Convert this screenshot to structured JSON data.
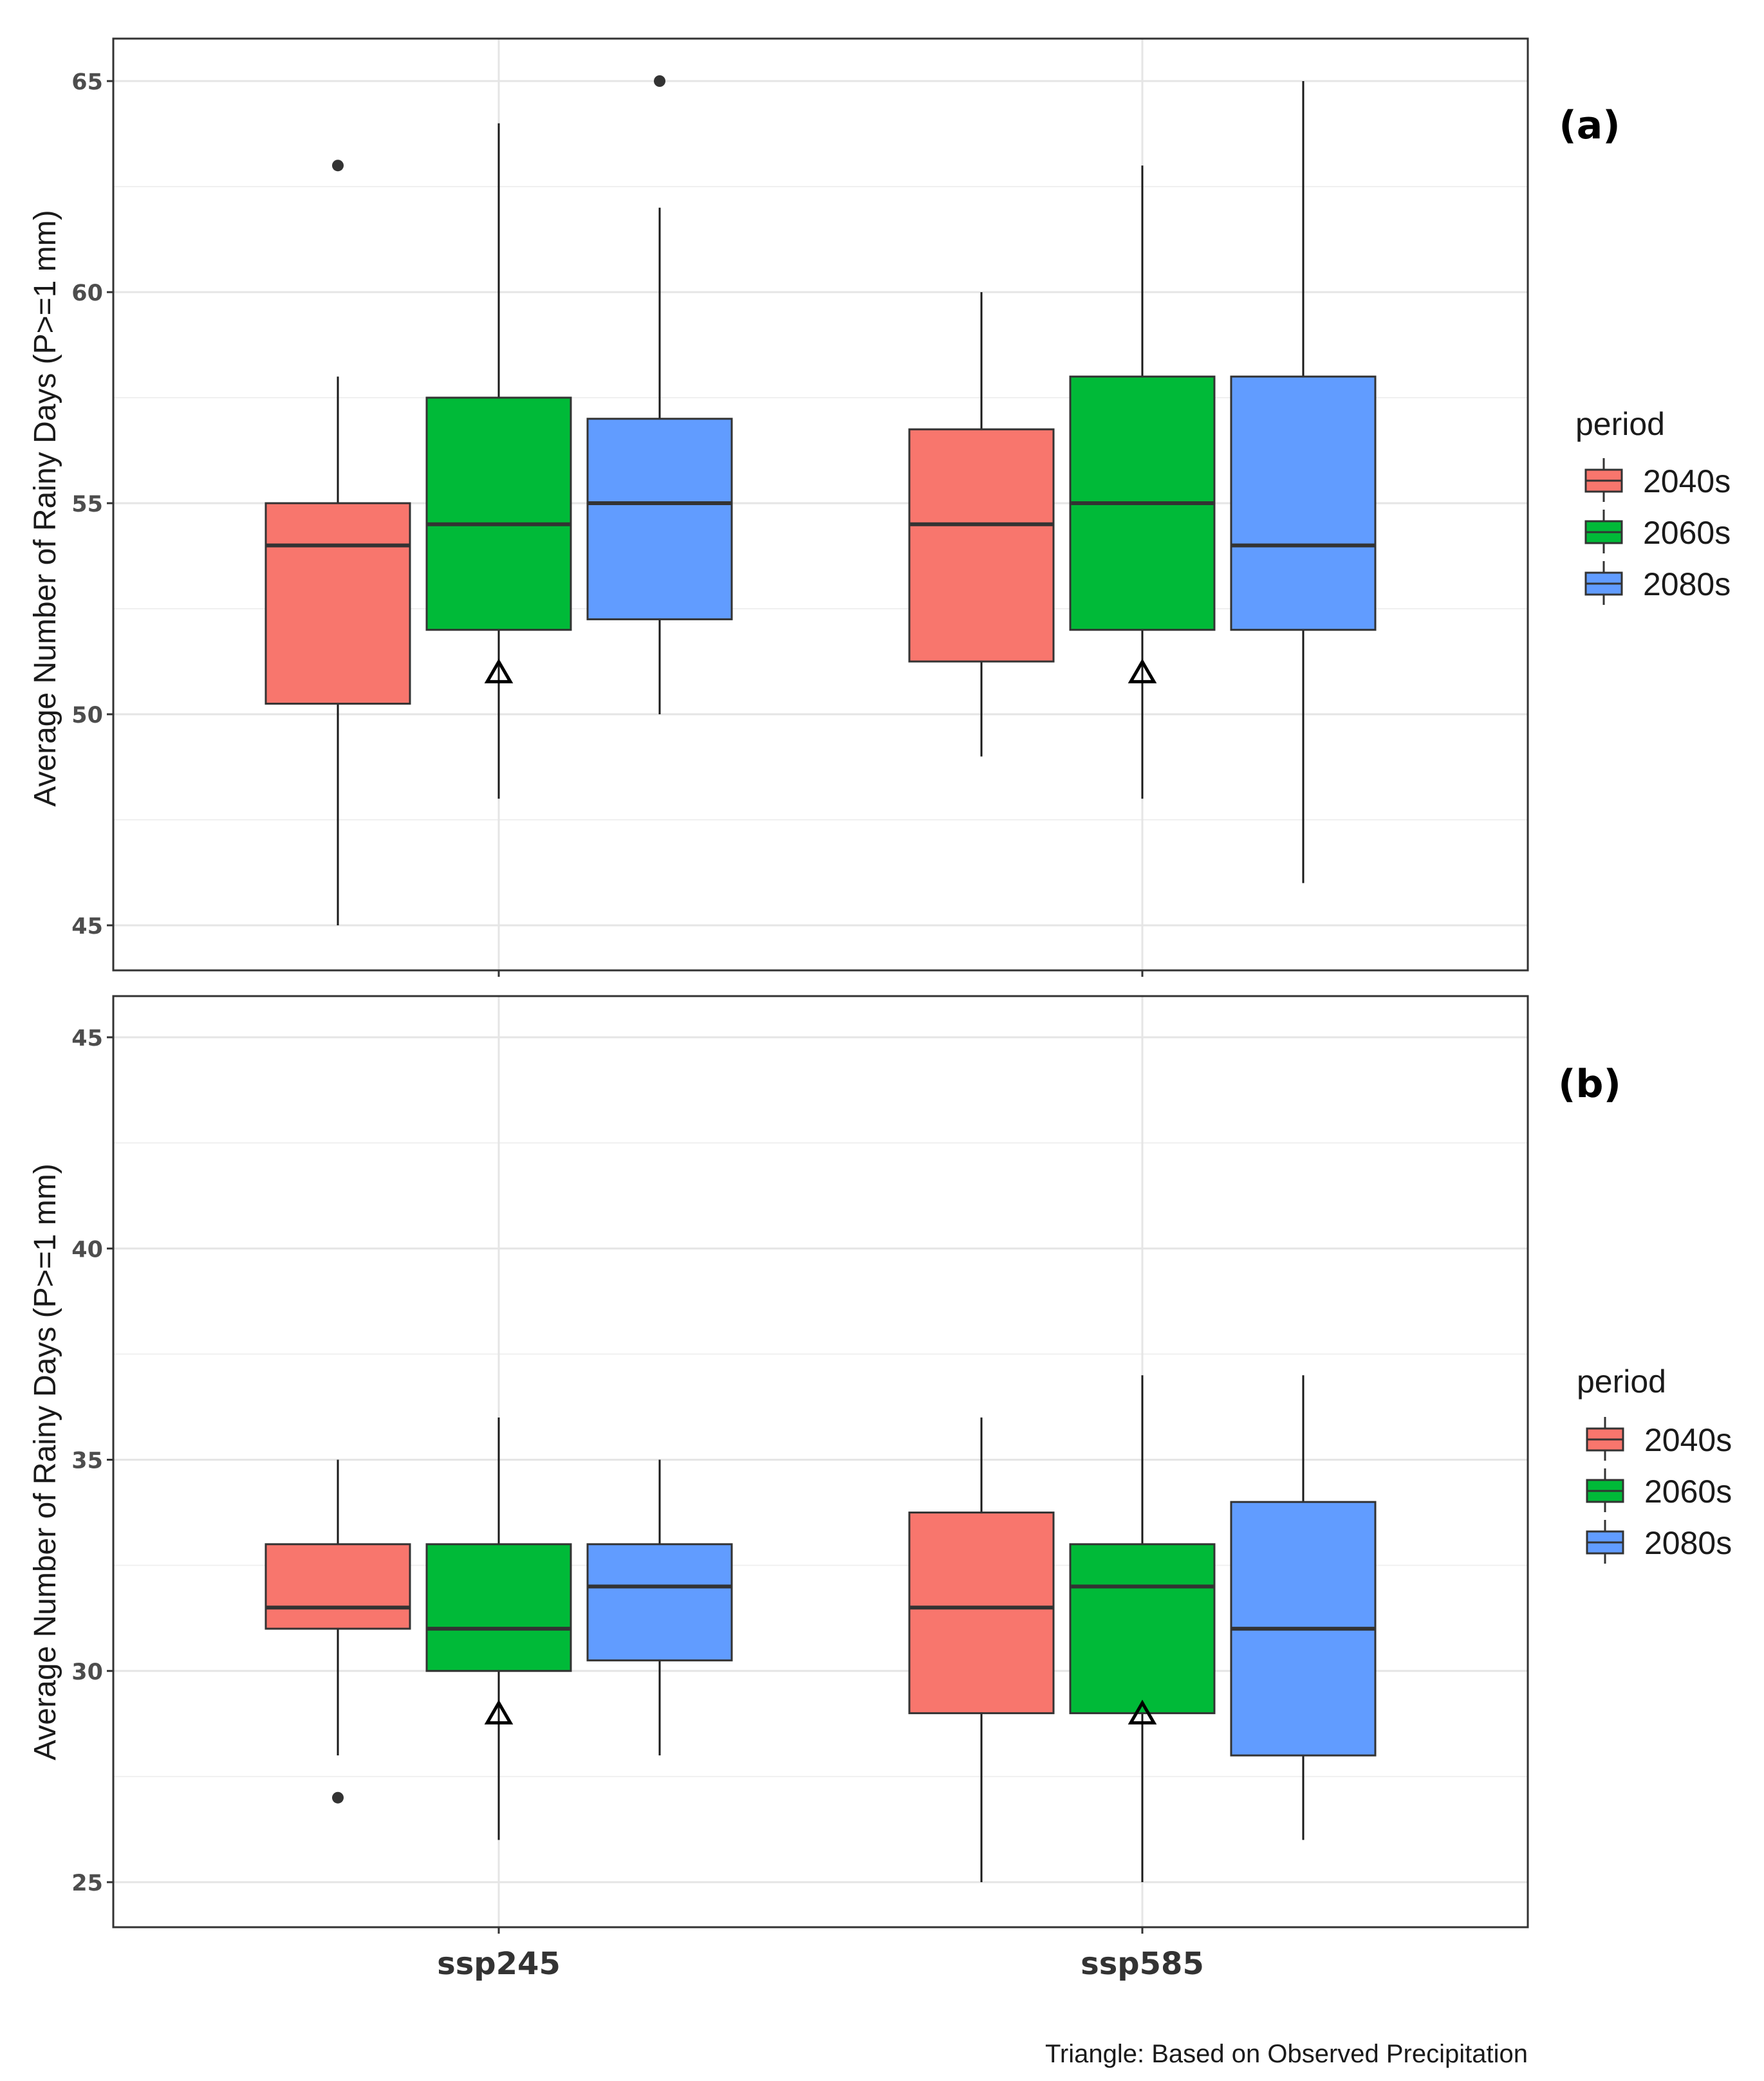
{
  "caption": "Triangle: Based on Observed Precipitation",
  "legend": {
    "title": "period",
    "items": [
      {
        "label": "2040s",
        "color": "#F8766D"
      },
      {
        "label": "2060s",
        "color": "#00BA38"
      },
      {
        "label": "2080s",
        "color": "#619CFF"
      }
    ]
  },
  "chart_data": [
    {
      "type": "boxplot",
      "panel": "(a)",
      "ylabel": "Average Number of Rainy Days (P>=1 mm)",
      "ylim": [
        44,
        65.5
      ],
      "yticks": [
        45,
        50,
        55,
        60,
        65
      ],
      "categories": [
        "ssp245",
        "ssp585"
      ],
      "observed_marker": 51,
      "series": [
        {
          "name": "2040s",
          "boxes": [
            {
              "category": "ssp245",
              "whisker_low": 45,
              "q1": 50.25,
              "median": 54,
              "q3": 55,
              "whisker_high": 58,
              "outliers": [
                63
              ]
            },
            {
              "category": "ssp585",
              "whisker_low": 49,
              "q1": 51.25,
              "median": 54.5,
              "q3": 56.75,
              "whisker_high": 60,
              "outliers": []
            }
          ]
        },
        {
          "name": "2060s",
          "boxes": [
            {
              "category": "ssp245",
              "whisker_low": 48,
              "q1": 52,
              "median": 54.5,
              "q3": 57.5,
              "whisker_high": 64,
              "outliers": []
            },
            {
              "category": "ssp585",
              "whisker_low": 48,
              "q1": 52,
              "median": 55,
              "q3": 58,
              "whisker_high": 63,
              "outliers": []
            }
          ]
        },
        {
          "name": "2080s",
          "boxes": [
            {
              "category": "ssp245",
              "whisker_low": 50,
              "q1": 52.25,
              "median": 55,
              "q3": 57,
              "whisker_high": 62,
              "outliers": [
                65
              ]
            },
            {
              "category": "ssp585",
              "whisker_low": 46,
              "q1": 52,
              "median": 54,
              "q3": 58,
              "whisker_high": 65,
              "outliers": []
            }
          ]
        }
      ]
    },
    {
      "type": "boxplot",
      "panel": "(b)",
      "ylabel": "Average Number of Rainy Days (P>=1 mm)",
      "ylim": [
        24,
        46
      ],
      "yticks": [
        25,
        30,
        35,
        40,
        45
      ],
      "categories": [
        "ssp245",
        "ssp585"
      ],
      "observed_marker": 29,
      "series": [
        {
          "name": "2040s",
          "boxes": [
            {
              "category": "ssp245",
              "whisker_low": 28,
              "q1": 31,
              "median": 31.5,
              "q3": 33,
              "whisker_high": 35,
              "outliers": [
                27
              ]
            },
            {
              "category": "ssp585",
              "whisker_low": 25,
              "q1": 29,
              "median": 31.5,
              "q3": 33.75,
              "whisker_high": 36,
              "outliers": []
            }
          ]
        },
        {
          "name": "2060s",
          "boxes": [
            {
              "category": "ssp245",
              "whisker_low": 26,
              "q1": 30,
              "median": 31,
              "q3": 33,
              "whisker_high": 36,
              "outliers": []
            },
            {
              "category": "ssp585",
              "whisker_low": 25,
              "q1": 29,
              "median": 32,
              "q3": 33,
              "whisker_high": 37,
              "outliers": []
            }
          ]
        },
        {
          "name": "2080s",
          "boxes": [
            {
              "category": "ssp245",
              "whisker_low": 28,
              "q1": 30.25,
              "median": 32,
              "q3": 33,
              "whisker_high": 35,
              "outliers": []
            },
            {
              "category": "ssp585",
              "whisker_low": 26,
              "q1": 28,
              "median": 31,
              "q3": 34,
              "whisker_high": 37,
              "outliers": []
            }
          ]
        }
      ]
    }
  ]
}
